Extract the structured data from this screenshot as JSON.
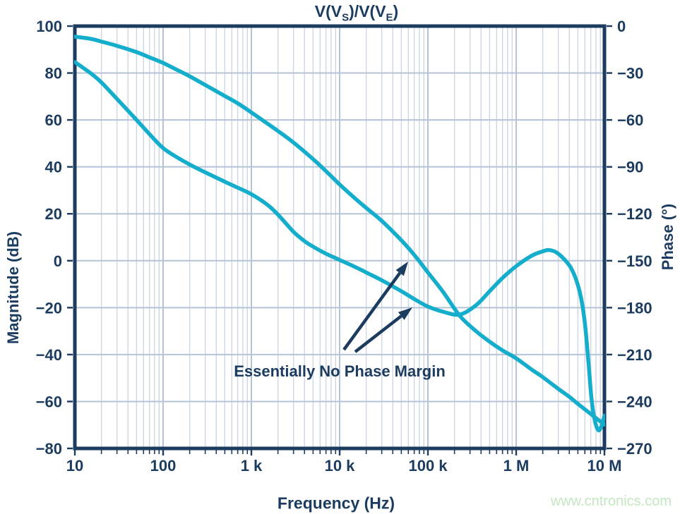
{
  "title": {
    "seg0": "V(V",
    "seg1": "S",
    "seg2": ")/V(V",
    "seg3": "E",
    "seg4": ")"
  },
  "watermark": "www.cntronics.com",
  "annotation": {
    "label": "Essentially No Phase Margin"
  },
  "colors": {
    "navy": "#1B3B5F",
    "curve_cyan": "#14ADCB",
    "grid_major": "#b4c3d6",
    "grid_minor": "#ccd7e4",
    "watermark_green": "#c3e7c0",
    "background": "#ffffff"
  },
  "chart_data": {
    "type": "line",
    "title": "V(VS)/V(VE)",
    "x_axis": {
      "label": "Frequency (Hz)",
      "scale": "log",
      "min": 10,
      "max": 10000000,
      "tick_values": [
        10,
        100,
        1000,
        10000,
        100000,
        1000000,
        10000000
      ],
      "tick_labels": [
        "10",
        "100",
        "1 k",
        "10 k",
        "100 k",
        "1 M",
        "10 M"
      ]
    },
    "y_left": {
      "label": "Magnitude (dB)",
      "min": -80,
      "max": 100,
      "step": 20,
      "tick_labels": [
        "100",
        "80",
        "60",
        "40",
        "20",
        "0",
        "−20",
        "−40",
        "−60",
        "−80"
      ]
    },
    "y_right": {
      "label": "Phase (°)",
      "min": -270,
      "max": 0,
      "step": 30,
      "tick_labels": [
        "0",
        "−30",
        "−60",
        "−90",
        "−120",
        "−150",
        "−180",
        "−210",
        "−240",
        "−270"
      ]
    },
    "grid": true,
    "legend": "none",
    "series": [
      {
        "name": "magnitude_db",
        "axis": "left",
        "points": [
          [
            10,
            95.5
          ],
          [
            15,
            94.6
          ],
          [
            20,
            93.4
          ],
          [
            30,
            91.6
          ],
          [
            50,
            88.9
          ],
          [
            70,
            86.7
          ],
          [
            100,
            84.3
          ],
          [
            150,
            81.0
          ],
          [
            200,
            78.6
          ],
          [
            300,
            74.9
          ],
          [
            500,
            70.2
          ],
          [
            700,
            67.1
          ],
          [
            1000,
            63.2
          ],
          [
            1500,
            58.6
          ],
          [
            2000,
            55.3
          ],
          [
            3000,
            50.4
          ],
          [
            5000,
            43.3
          ],
          [
            7000,
            38.2
          ],
          [
            10000,
            32.5
          ],
          [
            15000,
            26.5
          ],
          [
            20000,
            22.5
          ],
          [
            30000,
            17.0
          ],
          [
            50000,
            8.7
          ],
          [
            70000,
            2.5
          ],
          [
            100000,
            -5.0
          ],
          [
            150000,
            -13.5
          ],
          [
            230000,
            -23.5
          ],
          [
            350000,
            -30.0
          ],
          [
            500000,
            -34.5
          ],
          [
            700000,
            -38.2
          ],
          [
            1000000,
            -41.6
          ],
          [
            1500000,
            -46.4
          ],
          [
            2000000,
            -49.6
          ],
          [
            3000000,
            -54.6
          ],
          [
            4000000,
            -58.0
          ],
          [
            5000000,
            -61.0
          ],
          [
            7000000,
            -65.3
          ],
          [
            8500000,
            -67.8
          ],
          [
            10000000,
            -69.8
          ]
        ]
      },
      {
        "name": "phase_deg",
        "axis": "right",
        "points": [
          [
            10,
            -23
          ],
          [
            15,
            -30
          ],
          [
            20,
            -36
          ],
          [
            30,
            -46.5
          ],
          [
            50,
            -60
          ],
          [
            70,
            -69
          ],
          [
            100,
            -78
          ],
          [
            150,
            -84.5
          ],
          [
            200,
            -88.5
          ],
          [
            300,
            -93.5
          ],
          [
            500,
            -99.5
          ],
          [
            700,
            -103.3
          ],
          [
            1000,
            -107.5
          ],
          [
            1500,
            -114
          ],
          [
            2000,
            -120.5
          ],
          [
            3000,
            -131.5
          ],
          [
            4000,
            -137.5
          ],
          [
            5000,
            -141
          ],
          [
            7000,
            -145.5
          ],
          [
            10000,
            -149.5
          ],
          [
            15000,
            -154
          ],
          [
            20000,
            -157.5
          ],
          [
            30000,
            -162.5
          ],
          [
            50000,
            -169.5
          ],
          [
            70000,
            -174.5
          ],
          [
            100000,
            -179.3
          ],
          [
            150000,
            -182.7
          ],
          [
            230000,
            -184.4
          ],
          [
            350000,
            -178.5
          ],
          [
            500000,
            -169.5
          ],
          [
            700000,
            -161
          ],
          [
            1000000,
            -153.5
          ],
          [
            1500000,
            -146.8
          ],
          [
            2000000,
            -144
          ],
          [
            2400000,
            -143.2
          ],
          [
            3000000,
            -145.5
          ],
          [
            4000000,
            -153
          ],
          [
            4700000,
            -161
          ],
          [
            5400000,
            -173
          ],
          [
            6000000,
            -190
          ],
          [
            6600000,
            -215
          ],
          [
            7100000,
            -237
          ],
          [
            7700000,
            -251
          ],
          [
            8500000,
            -258.3
          ],
          [
            9200000,
            -256
          ],
          [
            10000000,
            -249
          ]
        ]
      }
    ],
    "annotations": [
      {
        "text": "Essentially No Phase Margin",
        "arrow_targets": [
          "magnitude 0 dB crossing ≈ 80 kHz",
          "phase ≈ −180° at same frequency"
        ]
      }
    ]
  }
}
